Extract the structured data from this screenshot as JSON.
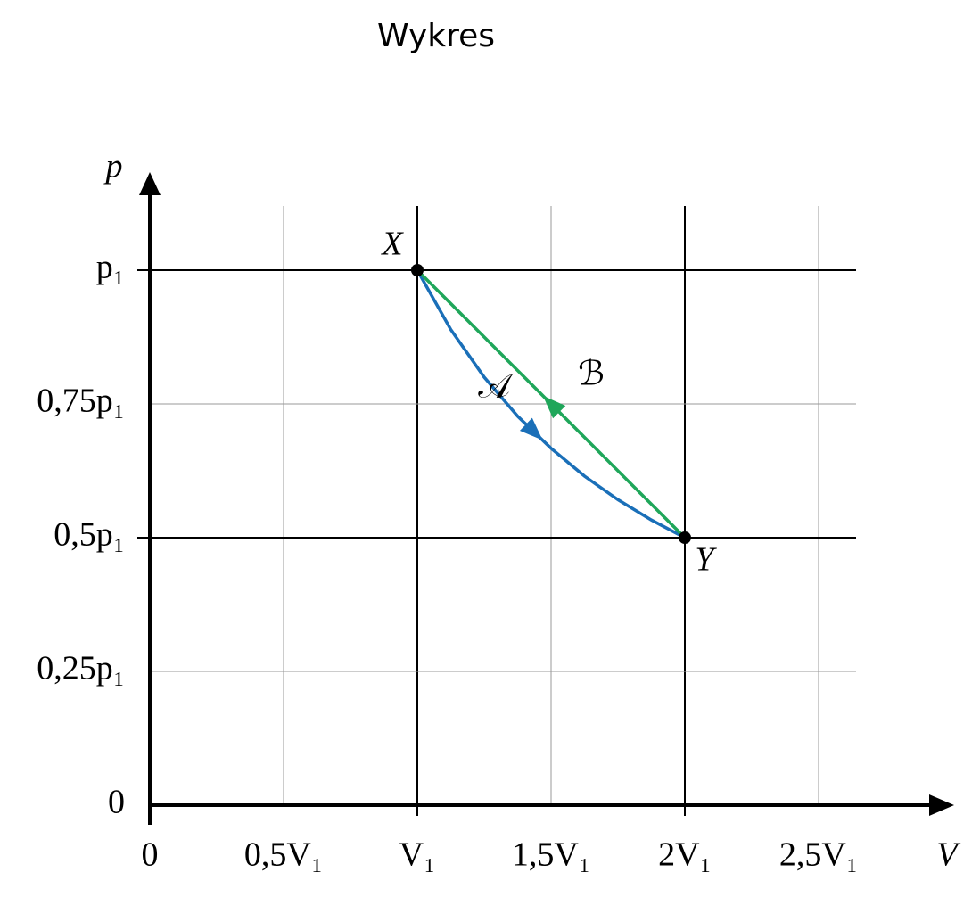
{
  "chart_data": {
    "type": "line",
    "title": "Wykres",
    "x_label": "V",
    "y_label": "p",
    "xlim": [
      0,
      2.64
    ],
    "ylim": [
      0,
      1.12
    ],
    "xticks": [
      0,
      {
        "value": 0.5,
        "label": "0,5V₁"
      },
      {
        "value": 1,
        "label": "V₁"
      },
      {
        "value": 1.5,
        "label": "1,5V₁"
      },
      {
        "value": 2,
        "label": "2V₁"
      },
      {
        "value": 2.5,
        "label": "2,5V₁"
      }
    ],
    "yticks": [
      0,
      {
        "value": 0.25,
        "label": "0,25p₁"
      },
      {
        "value": 0.5,
        "label": "0,5p₁"
      },
      {
        "value": 0.75,
        "label": "0,75p₁"
      },
      {
        "value": 1,
        "label": "p₁"
      }
    ],
    "grid": true,
    "series": [
      {
        "name": "𝒜",
        "color": "#1a6fb8",
        "x": [
          1,
          1.125,
          1.25,
          1.375,
          1.5,
          1.625,
          1.75,
          1.875,
          2
        ],
        "values": [
          1,
          0.889,
          0.8,
          0.727,
          0.667,
          0.615,
          0.571,
          0.533,
          0.5
        ]
      },
      {
        "name": "ℬ",
        "color": "#1fa65a",
        "x": [
          2,
          1
        ],
        "values": [
          0.5,
          1
        ]
      }
    ],
    "points": [
      {
        "label": "X",
        "x": 1,
        "y": 1
      },
      {
        "label": "Y",
        "x": 2,
        "y": 0.5
      }
    ]
  }
}
